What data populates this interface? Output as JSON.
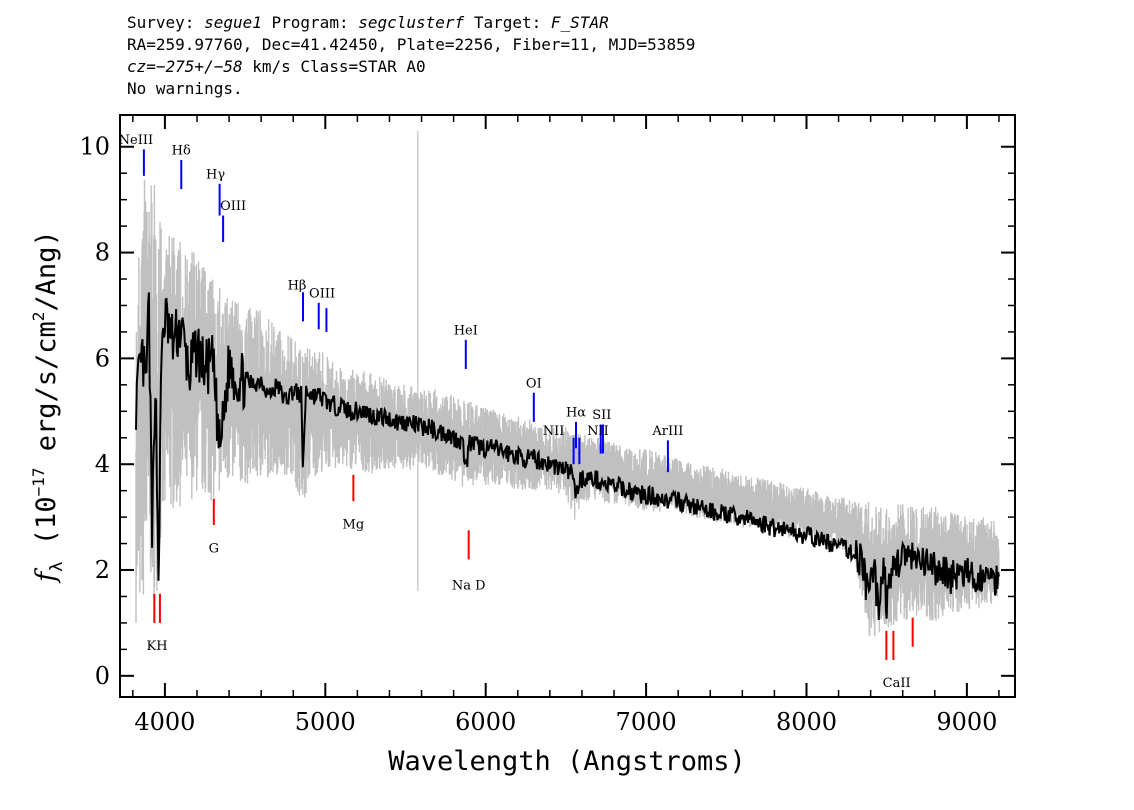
{
  "header": {
    "line1": {
      "survey_label": "Survey:",
      "survey_value": "segue1",
      "program_label": "Program:",
      "program_value": "segclusterf",
      "target_label": "Target:",
      "target_value": "F_STAR"
    },
    "line2": "RA=259.97760, Dec=41.42450, Plate=2256, Fiber=11, MJD=53859",
    "line3": {
      "cz_value": "cz=−275+/−58",
      "rest": " km/s Class=STAR A0"
    },
    "line4": "No warnings."
  },
  "chart_data": {
    "type": "line",
    "title": "",
    "xlabel": "Wavelength (Angstroms)",
    "ylabel": "f_λ (10^-17 erg/s/cm^2/Ang)",
    "xlim": [
      3720,
      9300
    ],
    "ylim": [
      -0.4,
      10.6
    ],
    "xticks": [
      4000,
      5000,
      6000,
      7000,
      8000,
      9000
    ],
    "yticks": [
      0,
      2,
      4,
      6,
      8,
      10
    ],
    "series": [
      {
        "name": "",
        "color": "#c0c0c0",
        "x": [
          3820,
          3860,
          3900,
          3940,
          3980,
          4020,
          4100,
          4200,
          4300,
          4400,
          4500,
          4600,
          4700,
          4800,
          4860,
          4900,
          5000,
          5100,
          5200,
          5300,
          5400,
          5500,
          5600,
          5700,
          5800,
          5880,
          5900,
          6000,
          6100,
          6200,
          6300,
          6400,
          6500,
          6560,
          6600,
          6700,
          6800,
          6900,
          7000,
          7100,
          7200,
          7300,
          7400,
          7500,
          7600,
          7700,
          7800,
          7900,
          8000,
          8100,
          8200,
          8300,
          8400,
          8500,
          8600,
          8700,
          8800,
          8900,
          9000,
          9100,
          9200
        ],
        "upper": [
          7.0,
          9.5,
          9.8,
          9.2,
          8.5,
          8.4,
          8.2,
          8.0,
          7.5,
          7.2,
          7.0,
          6.9,
          6.6,
          6.4,
          6.1,
          6.3,
          6.1,
          5.8,
          5.8,
          5.7,
          5.6,
          5.5,
          5.5,
          5.4,
          5.3,
          5.2,
          5.2,
          5.1,
          5.0,
          4.9,
          4.85,
          4.75,
          4.7,
          4.6,
          4.6,
          4.5,
          4.4,
          4.3,
          4.3,
          4.2,
          4.1,
          4.0,
          3.95,
          3.9,
          3.8,
          3.75,
          3.7,
          3.6,
          3.55,
          3.45,
          3.4,
          3.3,
          3.3,
          3.2,
          3.3,
          3.2,
          3.2,
          3.1,
          3.0,
          3.0,
          2.9
        ],
        "lower": [
          1.0,
          1.2,
          1.8,
          1.3,
          2.5,
          3.0,
          3.2,
          3.4,
          3.3,
          3.6,
          3.6,
          3.7,
          3.8,
          3.8,
          3.0,
          3.7,
          3.9,
          3.9,
          3.9,
          3.8,
          3.9,
          3.9,
          3.9,
          3.8,
          3.7,
          3.5,
          3.6,
          3.6,
          3.6,
          3.5,
          3.5,
          3.5,
          3.4,
          2.9,
          3.3,
          3.3,
          3.2,
          3.2,
          3.1,
          3.1,
          3.1,
          3.0,
          2.9,
          2.9,
          2.8,
          2.8,
          2.7,
          2.6,
          2.6,
          2.5,
          2.4,
          2.2,
          0.6,
          0.9,
          1.0,
          1.1,
          1.0,
          1.2,
          1.2,
          1.3,
          1.4
        ]
      },
      {
        "name": "",
        "color": "#000000",
        "x": [
          3820,
          3840,
          3860,
          3880,
          3900,
          3920,
          3940,
          3960,
          3980,
          4000,
          4050,
          4100,
          4150,
          4200,
          4250,
          4300,
          4340,
          4360,
          4400,
          4450,
          4500,
          4550,
          4600,
          4650,
          4700,
          4750,
          4800,
          4850,
          4860,
          4880,
          4920,
          4960,
          5000,
          5050,
          5100,
          5150,
          5200,
          5250,
          5300,
          5350,
          5400,
          5450,
          5500,
          5550,
          5600,
          5650,
          5700,
          5750,
          5800,
          5850,
          5880,
          5900,
          5950,
          6000,
          6050,
          6100,
          6150,
          6200,
          6250,
          6300,
          6350,
          6400,
          6450,
          6500,
          6550,
          6563,
          6580,
          6620,
          6700,
          6750,
          6800,
          6850,
          6900,
          6950,
          7000,
          7050,
          7100,
          7150,
          7200,
          7250,
          7300,
          7350,
          7400,
          7450,
          7500,
          7550,
          7600,
          7650,
          7700,
          7750,
          7800,
          7850,
          7900,
          7950,
          8000,
          8050,
          8100,
          8150,
          8200,
          8250,
          8300,
          8350,
          8380,
          8420,
          8450,
          8480,
          8500,
          8550,
          8600,
          8650,
          8700,
          8750,
          8800,
          8850,
          8900,
          8950,
          9000,
          9050,
          9100,
          9150,
          9200
        ],
        "y": [
          5.2,
          5.6,
          6.0,
          5.4,
          7.0,
          2.5,
          5.8,
          1.9,
          6.2,
          6.8,
          6.3,
          6.6,
          5.7,
          6.2,
          5.8,
          5.9,
          4.3,
          4.7,
          5.9,
          5.6,
          5.6,
          5.5,
          5.6,
          5.3,
          5.5,
          5.2,
          5.4,
          5.3,
          4.0,
          5.4,
          5.3,
          5.3,
          5.2,
          5.1,
          5.1,
          5.0,
          5.0,
          5.0,
          4.9,
          4.9,
          4.85,
          4.8,
          4.8,
          4.75,
          4.7,
          4.7,
          4.6,
          4.6,
          4.5,
          4.45,
          4.0,
          4.4,
          4.35,
          4.3,
          4.3,
          4.25,
          4.2,
          4.15,
          4.1,
          4.1,
          4.05,
          4.0,
          3.95,
          3.9,
          3.8,
          3.3,
          3.7,
          3.75,
          3.7,
          3.6,
          3.6,
          3.55,
          3.5,
          3.45,
          3.4,
          3.4,
          3.35,
          3.3,
          3.3,
          3.25,
          3.2,
          3.15,
          3.1,
          3.1,
          3.05,
          3.0,
          3.0,
          2.95,
          2.9,
          2.85,
          2.8,
          2.8,
          2.75,
          2.7,
          2.65,
          2.6,
          2.55,
          2.5,
          2.45,
          2.4,
          2.3,
          2.2,
          1.5,
          2.0,
          1.3,
          2.1,
          1.4,
          2.1,
          2.3,
          2.2,
          2.1,
          2.1,
          2.0,
          2.0,
          1.9,
          1.9,
          1.9,
          1.8,
          1.9,
          1.8,
          1.9
        ]
      }
    ],
    "line_markers": [
      {
        "label": "NeIII",
        "x": 3869,
        "y_top": 9.95,
        "y_bottom": 9.45,
        "color": "#0000ff",
        "side": "above"
      },
      {
        "label": "Hδ",
        "x": 4102,
        "y_top": 9.75,
        "y_bottom": 9.2,
        "color": "#0000ff",
        "side": "above"
      },
      {
        "label": "Hγ",
        "x": 4341,
        "y_top": 9.3,
        "y_bottom": 8.7,
        "color": "#0000ff",
        "side": "above"
      },
      {
        "label": "OIII",
        "x": 4363,
        "y_top": 8.7,
        "y_bottom": 8.2,
        "color": "#0000ff",
        "side": "above"
      },
      {
        "label": "Hβ",
        "x": 4861,
        "y_top": 7.25,
        "y_bottom": 6.7,
        "color": "#0000ff",
        "side": "above"
      },
      {
        "label": "OIII",
        "x": 4959,
        "y_top": 7.05,
        "y_bottom": 6.55,
        "color": "#0000ff",
        "side": "above"
      },
      {
        "label": "OIII",
        "x": 5007,
        "y_top": 6.95,
        "y_bottom": 6.5,
        "color": "#0000ff",
        "side": "above"
      },
      {
        "label": "HeI",
        "x": 5876,
        "y_top": 6.35,
        "y_bottom": 5.8,
        "color": "#0000ff",
        "side": "above"
      },
      {
        "label": "OI",
        "x": 6300,
        "y_top": 5.35,
        "y_bottom": 4.8,
        "color": "#0000ff",
        "side": "above"
      },
      {
        "label": "NII",
        "x": 6548,
        "y_top": 4.5,
        "y_bottom": 4.0,
        "color": "#0000ff",
        "side": "above"
      },
      {
        "label": "Hα",
        "x": 6563,
        "y_top": 4.8,
        "y_bottom": 4.3,
        "color": "#0000ff",
        "side": "above"
      },
      {
        "label": "NII",
        "x": 6584,
        "y_top": 4.5,
        "y_bottom": 4.0,
        "color": "#0000ff",
        "side": "above"
      },
      {
        "label": "SII",
        "x": 6717,
        "y_top": 4.75,
        "y_bottom": 4.2,
        "color": "#0000ff",
        "side": "above"
      },
      {
        "label": "SII",
        "x": 6731,
        "y_top": 4.75,
        "y_bottom": 4.2,
        "color": "#0000ff",
        "side": "above"
      },
      {
        "label": "ArIII",
        "x": 7136,
        "y_top": 4.45,
        "y_bottom": 3.85,
        "color": "#0000ff",
        "side": "above"
      },
      {
        "label": "K",
        "x": 3934,
        "y_top": 1.55,
        "y_bottom": 1.0,
        "color": "#ff0000",
        "side": "below"
      },
      {
        "label": "H",
        "x": 3969,
        "y_top": 1.55,
        "y_bottom": 1.0,
        "color": "#ff0000",
        "side": "below"
      },
      {
        "label": "G",
        "x": 4305,
        "y_top": 3.35,
        "y_bottom": 2.85,
        "color": "#ff0000",
        "side": "below"
      },
      {
        "label": "Mg",
        "x": 5175,
        "y_top": 3.8,
        "y_bottom": 3.3,
        "color": "#ff0000",
        "side": "below"
      },
      {
        "label": "Na D",
        "x": 5894,
        "y_top": 2.75,
        "y_bottom": 2.2,
        "color": "#ff0000",
        "side": "below"
      },
      {
        "label": "CaII",
        "x": 8498,
        "y_top": 0.85,
        "y_bottom": 0.3,
        "color": "#ff0000",
        "side": "below"
      },
      {
        "label": "CaII",
        "x": 8542,
        "y_top": 0.85,
        "y_bottom": 0.3,
        "color": "#ff0000",
        "side": "below"
      },
      {
        "label": "CaII",
        "x": 8662,
        "y_top": 1.1,
        "y_bottom": 0.55,
        "color": "#ff0000",
        "side": "below"
      }
    ],
    "marker_label_texts": [
      "NeIII",
      "Hδ",
      "Hγ",
      "OIII",
      "Hβ",
      "OIII",
      "HeI",
      "OI",
      "NII",
      "Hα",
      "SII",
      "NII",
      "ArIII",
      "KH",
      "G",
      "Mg",
      "Na D",
      "CaII"
    ]
  }
}
